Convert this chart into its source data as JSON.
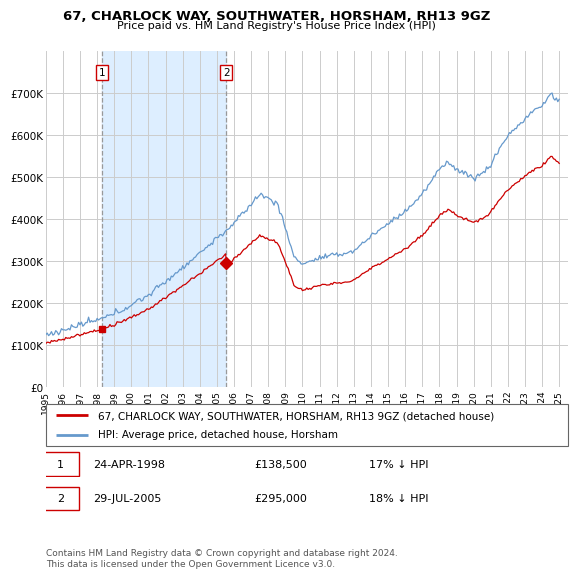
{
  "title": "67, CHARLOCK WAY, SOUTHWATER, HORSHAM, RH13 9GZ",
  "subtitle": "Price paid vs. HM Land Registry's House Price Index (HPI)",
  "legend_label_red": "67, CHARLOCK WAY, SOUTHWATER, HORSHAM, RH13 9GZ (detached house)",
  "legend_label_blue": "HPI: Average price, detached house, Horsham",
  "annotation1_date": "24-APR-1998",
  "annotation1_price": "£138,500",
  "annotation1_hpi": "17% ↓ HPI",
  "annotation2_date": "29-JUL-2005",
  "annotation2_price": "£295,000",
  "annotation2_hpi": "18% ↓ HPI",
  "footer": "Contains HM Land Registry data © Crown copyright and database right 2024.\nThis data is licensed under the Open Government Licence v3.0.",
  "ylim": [
    0,
    800000
  ],
  "yticks": [
    0,
    100000,
    200000,
    300000,
    400000,
    500000,
    600000,
    700000
  ],
  "ytick_labels": [
    "£0",
    "£100K",
    "£200K",
    "£300K",
    "£400K",
    "£500K",
    "£600K",
    "£700K"
  ],
  "red_color": "#cc0000",
  "blue_color": "#6699cc",
  "shade_color": "#ddeeff",
  "vline_color": "#aaaaaa",
  "background_color": "#ffffff",
  "grid_color": "#cccccc",
  "buy1_year": 1998.292,
  "buy1_price": 138500,
  "buy2_year": 2005.542,
  "buy2_price": 295000
}
